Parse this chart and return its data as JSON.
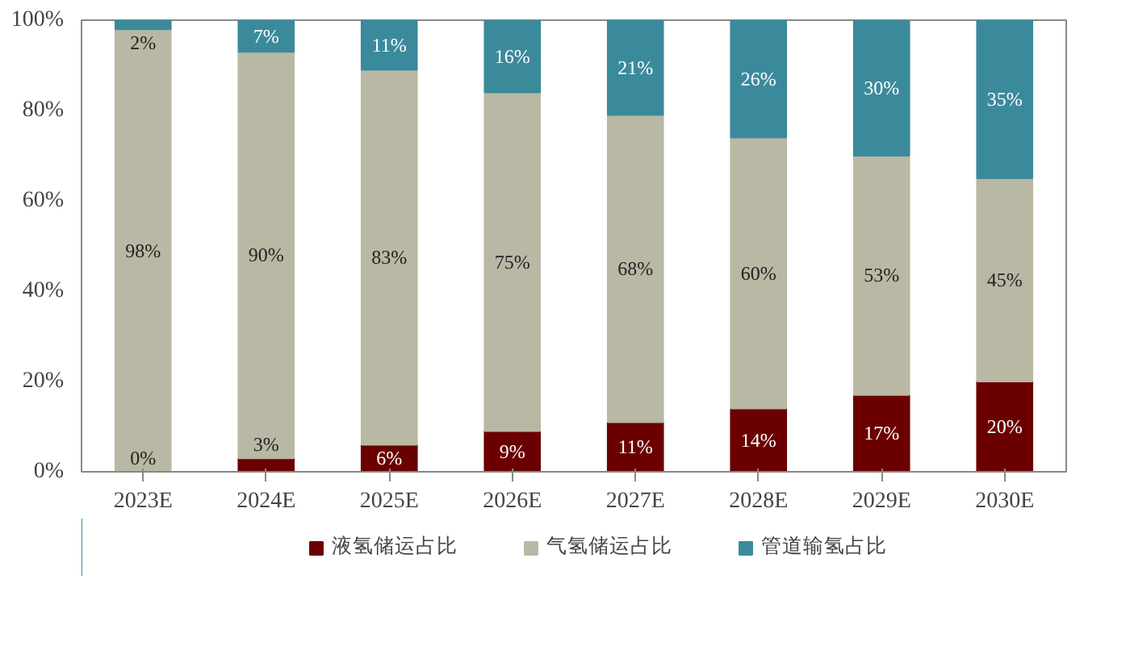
{
  "chart_data": {
    "type": "bar",
    "stacked": true,
    "categories": [
      "2023E",
      "2024E",
      "2025E",
      "2026E",
      "2027E",
      "2028E",
      "2029E",
      "2030E"
    ],
    "series": [
      {
        "name": "液氢储运占比",
        "color": "#6b0000",
        "values": [
          0,
          3,
          6,
          9,
          11,
          14,
          17,
          20
        ],
        "value_labels": [
          "0%",
          "3%",
          "6%",
          "9%",
          "11%",
          "14%",
          "17%",
          "20%"
        ]
      },
      {
        "name": "气氢储运占比",
        "color": "#b8b8a4",
        "values": [
          98,
          90,
          83,
          75,
          68,
          60,
          53,
          45
        ],
        "value_labels": [
          "98%",
          "90%",
          "83%",
          "75%",
          "68%",
          "60%",
          "53%",
          "45%"
        ]
      },
      {
        "name": "管道输氢占比",
        "color": "#3b8a9c",
        "values": [
          2,
          7,
          11,
          16,
          21,
          26,
          30,
          35
        ],
        "value_labels": [
          "2%",
          "7%",
          "11%",
          "16%",
          "21%",
          "26%",
          "30%",
          "35%"
        ]
      }
    ],
    "ylim": [
      0,
      100
    ],
    "yticks": [
      {
        "value": 0,
        "label": "0%"
      },
      {
        "value": 20,
        "label": "20%"
      },
      {
        "value": 40,
        "label": "40%"
      },
      {
        "value": 60,
        "label": "60%"
      },
      {
        "value": 80,
        "label": "80%"
      },
      {
        "value": 100,
        "label": "100%"
      }
    ],
    "grid": false,
    "legend": "bottom"
  }
}
